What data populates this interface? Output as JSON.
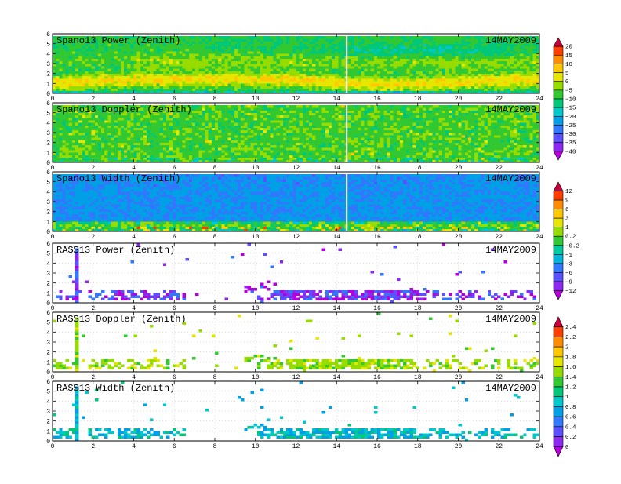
{
  "figure": {
    "date": "14MAY2009"
  },
  "chart_data": [
    {
      "type": "heatmap",
      "title": "Spano13 Power (Zenith)",
      "date": "14MAY2009",
      "xlim": [
        0,
        24
      ],
      "ylim": [
        0,
        6
      ],
      "x_ticks": [
        "0",
        "2",
        "4",
        "6",
        "8",
        "10",
        "12",
        "14",
        "16",
        "18",
        "20",
        "22",
        "24"
      ],
      "y_ticks": [
        "0",
        "1",
        "2",
        "3",
        "4",
        "5",
        "6"
      ],
      "colorbar_id": "power",
      "pattern": "spano-power",
      "data_gap_x": 14.5
    },
    {
      "type": "heatmap",
      "title": "Spano13 Doppler (Zenith)",
      "date": "14MAY2009",
      "xlim": [
        0,
        24
      ],
      "ylim": [
        0,
        6
      ],
      "x_ticks": [
        "0",
        "2",
        "4",
        "6",
        "8",
        "10",
        "12",
        "14",
        "16",
        "18",
        "20",
        "22",
        "24"
      ],
      "y_ticks": [
        "0",
        "1",
        "2",
        "3",
        "4",
        "5",
        "6"
      ],
      "colorbar_id": "power",
      "pattern": "spano-doppler",
      "data_gap_x": 14.5
    },
    {
      "type": "heatmap",
      "title": "Spano13 Width (Zenith)",
      "date": "14MAY2009",
      "xlim": [
        0,
        24
      ],
      "ylim": [
        0,
        6
      ],
      "x_ticks": [
        "0",
        "2",
        "4",
        "6",
        "8",
        "10",
        "12",
        "14",
        "16",
        "18",
        "20",
        "22",
        "24"
      ],
      "y_ticks": [
        "0",
        "1",
        "2",
        "3",
        "4",
        "5",
        "6"
      ],
      "colorbar_id": "doppler",
      "pattern": "spano-width",
      "data_gap_x": 14.5
    },
    {
      "type": "heatmap",
      "title": "RASS13 Power (Zenith)",
      "date": "14MAY2009",
      "xlim": [
        0,
        24
      ],
      "ylim": [
        0,
        6
      ],
      "x_ticks": [
        "0",
        "2",
        "4",
        "6",
        "8",
        "10",
        "12",
        "14",
        "16",
        "18",
        "20",
        "22",
        "24"
      ],
      "y_ticks": [
        "0",
        "1",
        "2",
        "3",
        "4",
        "5",
        "6"
      ],
      "colorbar_id": "doppler",
      "pattern": "rass-power"
    },
    {
      "type": "heatmap",
      "title": "RASS13 Doppler (Zenith)",
      "date": "14MAY2009",
      "xlim": [
        0,
        24
      ],
      "ylim": [
        0,
        6
      ],
      "x_ticks": [
        "0",
        "2",
        "4",
        "6",
        "8",
        "10",
        "12",
        "14",
        "16",
        "18",
        "20",
        "22",
        "24"
      ],
      "y_ticks": [
        "0",
        "1",
        "2",
        "3",
        "4",
        "5",
        "6"
      ],
      "colorbar_id": "width",
      "pattern": "rass-doppler"
    },
    {
      "type": "heatmap",
      "title": "RASS13 Width (Zenith)",
      "date": "14MAY2009",
      "xlim": [
        0,
        24
      ],
      "ylim": [
        0,
        6
      ],
      "x_ticks": [
        "0",
        "2",
        "4",
        "6",
        "8",
        "10",
        "12",
        "14",
        "16",
        "18",
        "20",
        "22",
        "24"
      ],
      "y_ticks": [
        "0",
        "1",
        "2",
        "3",
        "4",
        "5",
        "6"
      ],
      "colorbar_id": "width",
      "pattern": "rass-width"
    }
  ],
  "colorbars": [
    {
      "id": "power",
      "labels": [
        "20",
        "15",
        "10",
        "5",
        "0",
        "−5",
        "−10",
        "−15",
        "−20",
        "−25",
        "−30",
        "−35",
        "−40"
      ],
      "colors": [
        "#c8003c",
        "#ff3c00",
        "#ff8c00",
        "#ffc800",
        "#e6e600",
        "#96dc00",
        "#32c832",
        "#00c878",
        "#00c8c8",
        "#00a0e6",
        "#3278ff",
        "#5a50ff",
        "#8c28f0",
        "#b400dc"
      ]
    },
    {
      "id": "doppler",
      "labels": [
        "12",
        "9",
        "6",
        "3",
        "1",
        "0.2",
        "−0.2",
        "−1",
        "−3",
        "−6",
        "−9",
        "−12"
      ],
      "colors": [
        "#c8003c",
        "#ff3c00",
        "#ff8c00",
        "#ffc800",
        "#e6e600",
        "#96dc00",
        "#32c832",
        "#00c8a0",
        "#00b4dc",
        "#3278ff",
        "#5a50ff",
        "#8c28f0",
        "#b400dc"
      ]
    },
    {
      "id": "width",
      "labels": [
        "2.4",
        "2.2",
        "2",
        "1.8",
        "1.6",
        "1.4",
        "1.2",
        "1",
        "0.8",
        "0.6",
        "0.4",
        "0.2",
        "0"
      ],
      "colors": [
        "#c8003c",
        "#ff3c00",
        "#ff8c00",
        "#ffc800",
        "#e6e600",
        "#96dc00",
        "#32c832",
        "#00c878",
        "#00c8c8",
        "#00a0e6",
        "#3278ff",
        "#5a50ff",
        "#8c28f0",
        "#b400dc"
      ]
    }
  ]
}
